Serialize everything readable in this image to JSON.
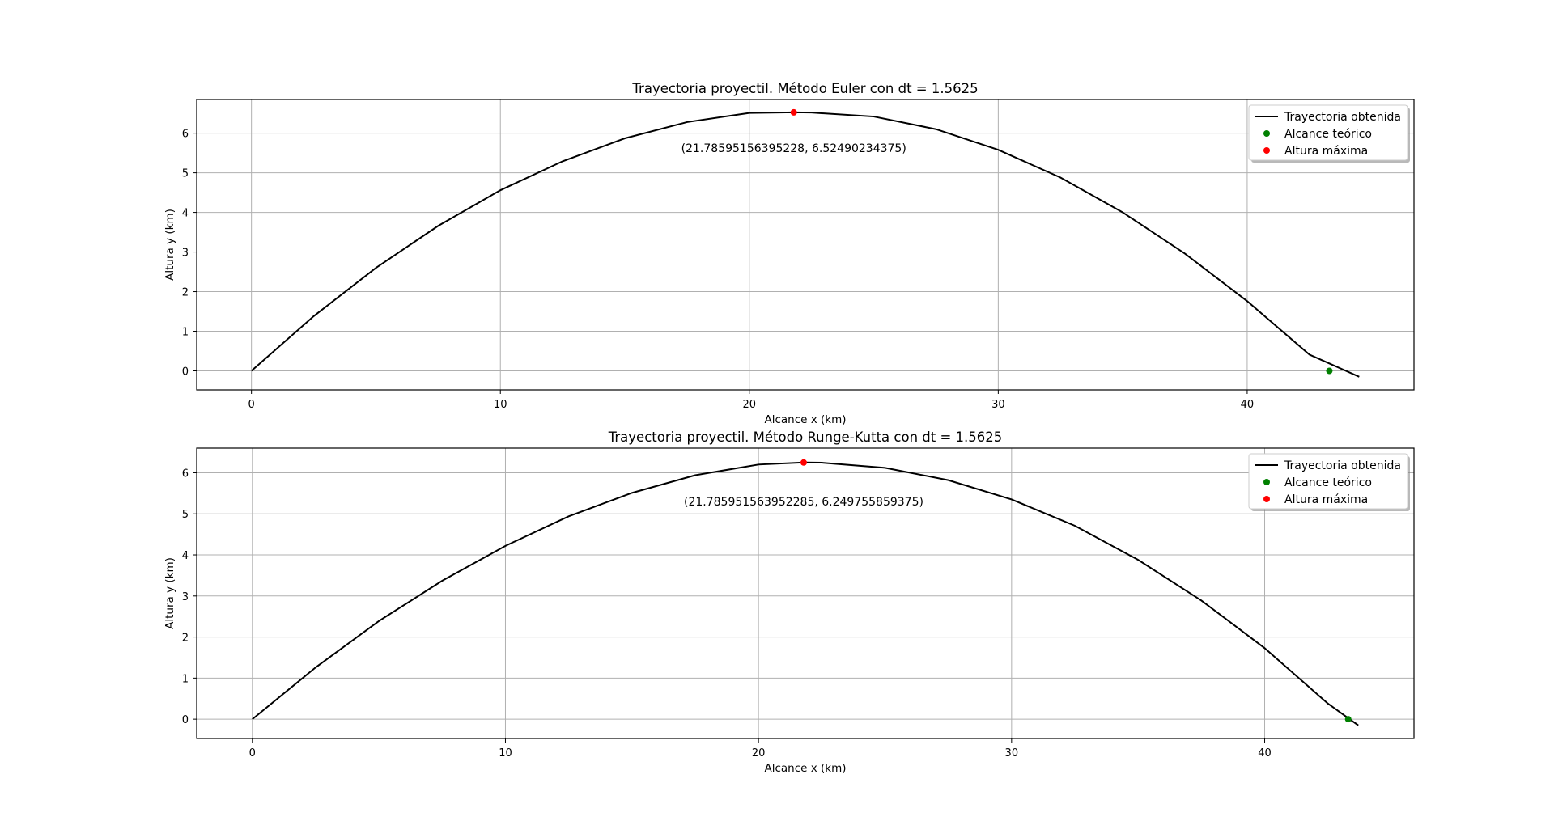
{
  "chart_data": [
    {
      "type": "line",
      "title": "Trayectoria proyectil. Método Euler con dt = 1.5625",
      "xlabel": "Alcance x (km)",
      "ylabel": "Altura y (km)",
      "xlim": [
        -2.2,
        46.7
      ],
      "ylim": [
        -0.48,
        6.85
      ],
      "xticks": [
        0,
        10,
        20,
        30,
        40
      ],
      "yticks": [
        0,
        1,
        2,
        3,
        4,
        5,
        6
      ],
      "grid": true,
      "legend_position": "top-right",
      "legend": [
        "Trayectoria obtenida",
        "Alcance teórico",
        "Altura máxima"
      ],
      "series": [
        {
          "name": "Trayectoria obtenida",
          "color": "#000000",
          "x": [
            0,
            2.5,
            5,
            7.5,
            10,
            12.5,
            15,
            17.5,
            20,
            21.79,
            22.5,
            25,
            27.5,
            30,
            32.5,
            35,
            37.5,
            40,
            42.5,
            44.5
          ],
          "y": [
            0,
            1.38,
            2.6,
            3.66,
            4.56,
            5.29,
            5.87,
            6.28,
            6.51,
            6.525,
            6.52,
            6.42,
            6.1,
            5.58,
            4.88,
            4.0,
            2.96,
            1.76,
            0.41,
            -0.15
          ]
        },
        {
          "name": "Alcance teórico",
          "color": "#008000",
          "x": [
            43.3
          ],
          "y": [
            0
          ]
        },
        {
          "name": "Altura máxima",
          "color": "#ff0000",
          "x": [
            21.78595156395228
          ],
          "y": [
            6.52490234375
          ]
        }
      ],
      "annotation": {
        "text": "(21.78595156395228, 6.52490234375)",
        "x": 21.78595156395228,
        "y": 5.63
      }
    },
    {
      "type": "line",
      "title": "Trayectoria proyectil. Método Runge-Kutta con dt = 1.5625",
      "xlabel": "Alcance x (km)",
      "ylabel": "Altura y (km)",
      "xlim": [
        -2.2,
        45.9
      ],
      "ylim": [
        -0.47,
        6.6
      ],
      "xticks": [
        0,
        10,
        20,
        30,
        40
      ],
      "yticks": [
        0,
        1,
        2,
        3,
        4,
        5,
        6
      ],
      "grid": true,
      "legend_position": "top-right",
      "legend": [
        "Trayectoria obtenida",
        "Alcance teórico",
        "Altura máxima"
      ],
      "series": [
        {
          "name": "Trayectoria obtenida",
          "color": "#000000",
          "x": [
            0,
            2.5,
            5,
            7.5,
            10,
            12.5,
            15,
            17.5,
            20,
            21.79,
            22.5,
            25,
            27.5,
            30,
            32.5,
            35,
            37.5,
            40,
            42.5,
            43.7
          ],
          "y": [
            0,
            1.26,
            2.39,
            3.37,
            4.22,
            4.94,
            5.51,
            5.94,
            6.2,
            6.25,
            6.245,
            6.12,
            5.82,
            5.35,
            4.71,
            3.88,
            2.89,
            1.73,
            0.38,
            -0.15
          ]
        },
        {
          "name": "Alcance teórico",
          "color": "#008000",
          "x": [
            43.3
          ],
          "y": [
            0
          ]
        },
        {
          "name": "Altura máxima",
          "color": "#ff0000",
          "x": [
            21.785951563952285
          ],
          "y": [
            6.249755859375
          ]
        }
      ],
      "annotation": {
        "text": "(21.785951563952285, 6.249755859375)",
        "x": 21.785951563952285,
        "y": 5.3
      }
    }
  ]
}
